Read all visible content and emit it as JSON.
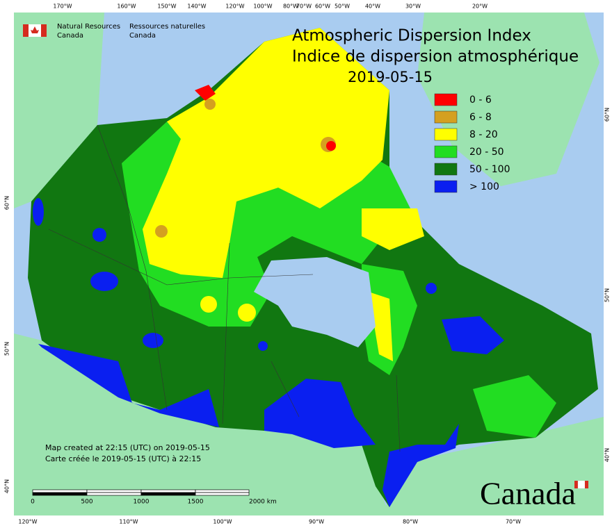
{
  "header": {
    "org_en": "Natural Resources",
    "org_en2": "Canada",
    "org_fr": "Ressources naturelles",
    "org_fr2": "Canada"
  },
  "title": {
    "en": "Atmospheric Dispersion Index",
    "fr": "Indice de dispersion atmosphérique",
    "date": "2019-05-15"
  },
  "legend": [
    {
      "label": "0 - 6",
      "color": "#ff0000"
    },
    {
      "label": "6 - 8",
      "color": "#d4a020"
    },
    {
      "label": "8 - 20",
      "color": "#ffff00"
    },
    {
      "label": "20 - 50",
      "color": "#22dd22"
    },
    {
      "label": "50 - 100",
      "color": "#117711"
    },
    {
      "label": "> 100",
      "color": "#0a1ff0"
    }
  ],
  "credits": [
    "Map created at 22:15 (UTC) on 2019-05-15",
    "Carte créée le 2019-05-15 (UTC) à 22:15"
  ],
  "scale_bar": {
    "labels": [
      "0",
      "500",
      "1000",
      "1500",
      "2000 km"
    ]
  },
  "graticule": {
    "top": [
      "170°W",
      "160°W",
      "150°W",
      "140°W",
      "120°W",
      "100°W",
      "80°W",
      "70°W",
      "60°W",
      "50°W",
      "40°W",
      "30°W",
      "20°W"
    ],
    "bottom": [
      "120°W",
      "110°W",
      "100°W",
      "90°W",
      "80°W",
      "70°W"
    ],
    "left": [
      "60°N",
      "50°N",
      "40°N"
    ],
    "right": [
      "60°N",
      "50°N",
      "40°N"
    ]
  },
  "wordmark": "Canada"
}
